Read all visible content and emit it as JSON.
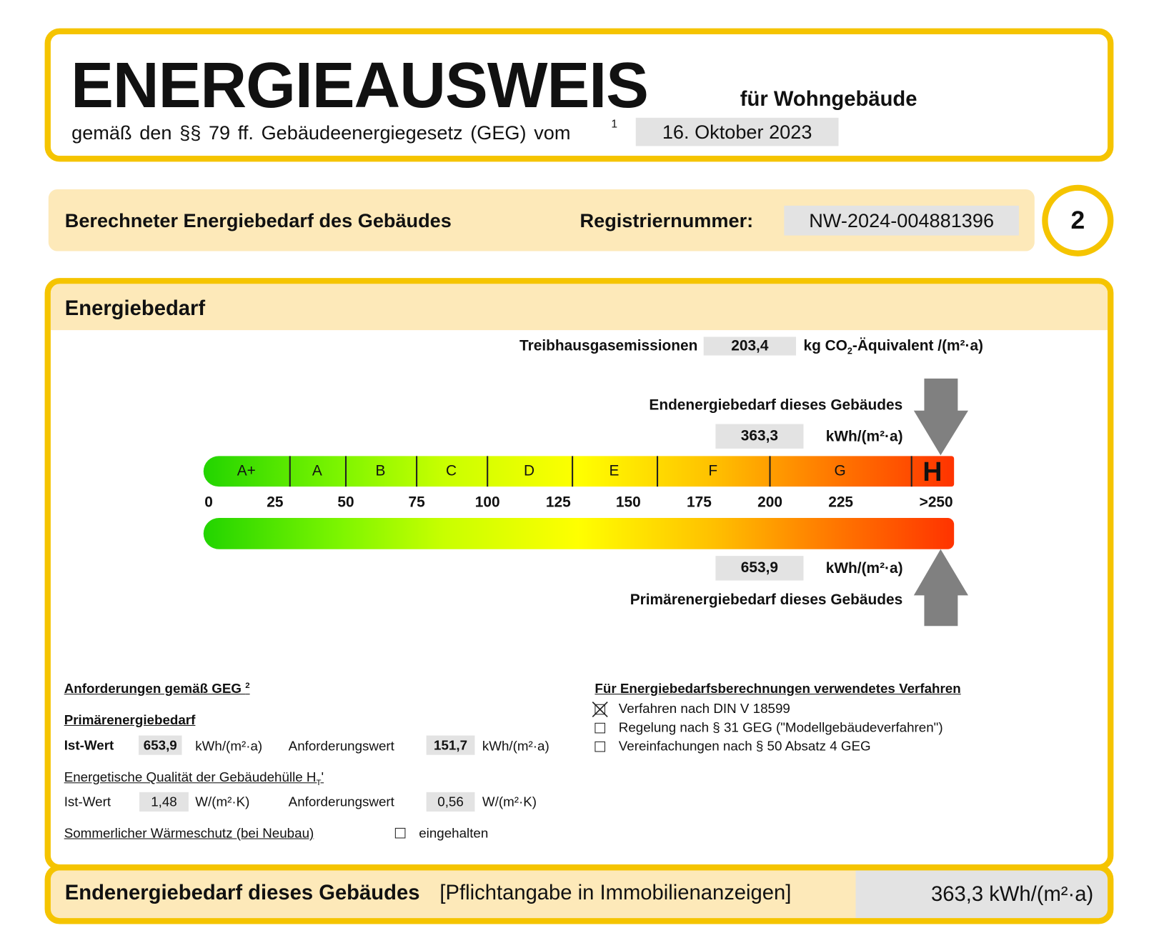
{
  "header": {
    "title": "ENERGIEAUSWEIS",
    "subtitle": "für Wohngebäude",
    "law_text": "gemäß den §§ 79 ff. Gebäudeenergiegesetz (GEG) vom",
    "law_footnote": "1",
    "date": "16. Oktober 2023"
  },
  "registration": {
    "label": "Berechneter Energiebedarf des Gebäudes",
    "number_label": "Registriernummer:",
    "number": "NW-2024-004881396",
    "page": "2"
  },
  "energy": {
    "heading": "Energiebedarf",
    "ghg": {
      "label": "Treibhausgasemissionen",
      "value": "203,4",
      "unit_a": "kg CO",
      "unit_sub": "2",
      "unit_b": "-Äquivalent /(m²·a)"
    },
    "final": {
      "label": "Endenergiebedarf dieses Gebäudes",
      "value": "363,3",
      "unit": "kWh/(m²·a)"
    },
    "primary": {
      "label": "Primärenergiebedarf dieses Gebäudes",
      "value": "653,9",
      "unit": "kWh/(m²·a)"
    },
    "classes": [
      "A+",
      "A",
      "B",
      "C",
      "D",
      "E",
      "F",
      "G",
      "H"
    ],
    "scale": [
      "0",
      "25",
      "50",
      "75",
      "100",
      "125",
      "150",
      "175",
      "200",
      "225",
      ">250"
    ]
  },
  "requirements": {
    "heading": "Anforderungen gemäß GEG",
    "heading_footnote": "2",
    "primary_heading": "Primärenergiebedarf",
    "primary_row": {
      "ist_label": "Ist-Wert",
      "ist_value": "653,9",
      "ist_unit": "kWh/(m²·a)",
      "req_label": "Anforderungswert",
      "req_value": "151,7",
      "req_unit": "kWh/(m²·a)"
    },
    "envelope_heading_a": "Energetische Qualität der Gebäudehülle H",
    "envelope_heading_sub": "T",
    "envelope_heading_b": "'",
    "envelope_row": {
      "ist_label": "Ist-Wert",
      "ist_value": "1,48",
      "ist_unit": "W/(m²·K)",
      "req_label": "Anforderungswert",
      "req_value": "0,56",
      "req_unit": "W/(m²·K)"
    },
    "summer_label": "Sommerlicher Wärmeschutz (bei Neubau)",
    "summer_option": "eingehalten"
  },
  "method": {
    "heading": "Für Energiebedarfsberechnungen verwendetes Verfahren",
    "options": [
      "Verfahren nach DIN V 18599",
      "Regelung nach § 31 GEG (\"Modellgebäudeverfahren\")",
      "Vereinfachungen nach § 50 Absatz 4 GEG"
    ]
  },
  "footer": {
    "label": "Endenergiebedarf dieses Gebäudes",
    "note": "[Pflichtangabe in Immobilienanzeigen]",
    "value": "363,3 kWh/(m²·a)"
  }
}
